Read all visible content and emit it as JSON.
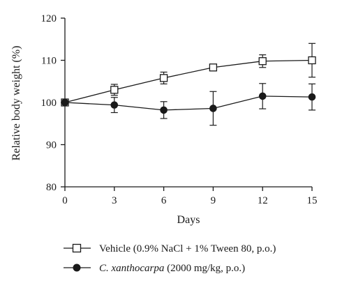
{
  "chart_data": {
    "type": "line",
    "xlabel": "Days",
    "ylabel": "Relative body weight (%)",
    "x": [
      0,
      3,
      6,
      9,
      12,
      15
    ],
    "xlim": [
      0,
      15
    ],
    "ylim": [
      80,
      120
    ],
    "xticks": [
      "0",
      "3",
      "6",
      "9",
      "12",
      "15"
    ],
    "yticks": [
      "80",
      "90",
      "100",
      "110",
      "120"
    ],
    "grid": false,
    "legend_position": "bottom",
    "series": [
      {
        "name": "Vehicle (0.9% NaCl + 1% Tween 80, p.o.)",
        "marker": "open-square",
        "values": [
          100,
          103,
          105.8,
          108.3,
          109.8,
          110
        ],
        "errors": [
          0.4,
          1.3,
          1.4,
          0.5,
          1.5,
          4.0
        ]
      },
      {
        "name_italic": "C. xanthocarpa",
        "name_rest": " (2000 mg/kg, p.o.)",
        "marker": "filled-circle",
        "values": [
          100,
          99.4,
          98.2,
          98.6,
          101.5,
          101.3
        ],
        "errors": [
          0.4,
          1.8,
          2.0,
          4.0,
          3.0,
          3.1
        ]
      }
    ]
  }
}
